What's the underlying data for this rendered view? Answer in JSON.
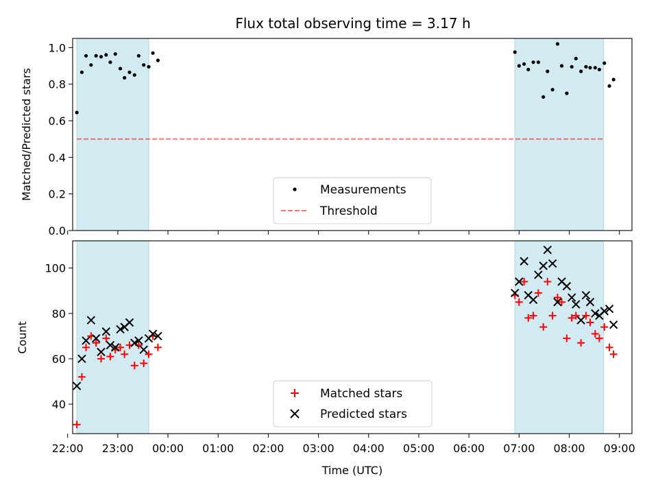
{
  "title": "Flux total observing time = 3.17 h",
  "colors": {
    "band": "#add8e6",
    "measurement": "#000000",
    "threshold": "#ff0000",
    "matched": "#ff0000",
    "predicted": "#000000"
  },
  "chart_data": [
    {
      "type": "scatter",
      "name": "ratio-panel",
      "ylabel": "Matched/Predicted stars",
      "xlabel": "",
      "ylim": [
        0,
        1.05
      ],
      "xlim": [
        "22:06",
        "09:15"
      ],
      "yticks": [
        {
          "value": 0.0,
          "label": "0.0"
        },
        {
          "value": 0.2,
          "label": "0.2"
        },
        {
          "value": 0.4,
          "label": "0.4"
        },
        {
          "value": 0.6,
          "label": "0.6"
        },
        {
          "value": 0.8,
          "label": "0.8"
        },
        {
          "value": 1.0,
          "label": "1.0"
        }
      ],
      "observing_windows": [
        {
          "start": "22:11",
          "end": "23:37"
        },
        {
          "start": "06:55",
          "end": "08:41"
        }
      ],
      "legend": {
        "placement": "lower center",
        "entries": [
          {
            "label": "Measurements",
            "marker": "dot"
          },
          {
            "label": "Threshold",
            "marker": "dashed-line"
          }
        ]
      },
      "series": [
        {
          "name": "Measurements",
          "marker": "dot",
          "points": [
            [
              "22:11",
              0.645
            ],
            [
              "22:17",
              0.865
            ],
            [
              "22:22",
              0.955
            ],
            [
              "22:28",
              0.905
            ],
            [
              "22:34",
              0.955
            ],
            [
              "22:40",
              0.95
            ],
            [
              "22:46",
              0.96
            ],
            [
              "22:51",
              0.92
            ],
            [
              "22:57",
              0.965
            ],
            [
              "23:03",
              0.885
            ],
            [
              "23:08",
              0.835
            ],
            [
              "23:14",
              0.865
            ],
            [
              "23:20",
              0.85
            ],
            [
              "23:25",
              0.955
            ],
            [
              "23:31",
              0.905
            ],
            [
              "23:37",
              0.895
            ],
            [
              "23:42",
              0.97
            ],
            [
              "23:48",
              0.93
            ],
            [
              "06:55",
              0.975
            ],
            [
              "07:00",
              0.9
            ],
            [
              "07:06",
              0.91
            ],
            [
              "07:11",
              0.88
            ],
            [
              "07:17",
              0.92
            ],
            [
              "07:23",
              0.92
            ],
            [
              "07:29",
              0.73
            ],
            [
              "07:34",
              0.87
            ],
            [
              "07:40",
              0.77
            ],
            [
              "07:46",
              1.02
            ],
            [
              "07:51",
              0.9
            ],
            [
              "07:57",
              0.75
            ],
            [
              "08:03",
              0.895
            ],
            [
              "08:08",
              0.94
            ],
            [
              "08:14",
              0.87
            ],
            [
              "08:20",
              0.895
            ],
            [
              "08:25",
              0.89
            ],
            [
              "08:31",
              0.89
            ],
            [
              "08:36",
              0.88
            ],
            [
              "08:42",
              0.915
            ],
            [
              "08:48",
              0.79
            ],
            [
              "08:53",
              0.825
            ]
          ]
        },
        {
          "name": "Threshold",
          "marker": "dashed-line",
          "points": [
            [
              "22:11",
              0.5
            ],
            [
              "08:41",
              0.5
            ]
          ]
        }
      ]
    },
    {
      "type": "scatter",
      "name": "count-panel",
      "ylabel": "Count",
      "xlabel": "Time (UTC)",
      "ylim": [
        27,
        112
      ],
      "xlim": [
        "22:06",
        "09:15"
      ],
      "yticks": [
        {
          "value": 40,
          "label": "40"
        },
        {
          "value": 60,
          "label": "60"
        },
        {
          "value": 80,
          "label": "80"
        },
        {
          "value": 100,
          "label": "100"
        }
      ],
      "xticks": [
        {
          "value": "22:00",
          "label": "22:00"
        },
        {
          "value": "23:00",
          "label": "23:00"
        },
        {
          "value": "00:00",
          "label": "00:00"
        },
        {
          "value": "01:00",
          "label": "01:00"
        },
        {
          "value": "02:00",
          "label": "02:00"
        },
        {
          "value": "03:00",
          "label": "03:00"
        },
        {
          "value": "04:00",
          "label": "04:00"
        },
        {
          "value": "05:00",
          "label": "05:00"
        },
        {
          "value": "06:00",
          "label": "06:00"
        },
        {
          "value": "07:00",
          "label": "07:00"
        },
        {
          "value": "08:00",
          "label": "08:00"
        },
        {
          "value": "09:00",
          "label": "09:00"
        }
      ],
      "observing_windows": [
        {
          "start": "22:11",
          "end": "23:37"
        },
        {
          "start": "06:55",
          "end": "08:41"
        }
      ],
      "legend": {
        "placement": "lower center",
        "entries": [
          {
            "label": "Matched stars",
            "marker": "plus"
          },
          {
            "label": "Predicted stars",
            "marker": "x"
          }
        ]
      },
      "series": [
        {
          "name": "Matched stars",
          "marker": "plus",
          "points": [
            [
              "22:11",
              31
            ],
            [
              "22:17",
              52
            ],
            [
              "22:22",
              65
            ],
            [
              "22:28",
              70
            ],
            [
              "22:34",
              67
            ],
            [
              "22:40",
              60
            ],
            [
              "22:46",
              69
            ],
            [
              "22:51",
              61
            ],
            [
              "22:57",
              64
            ],
            [
              "23:03",
              65
            ],
            [
              "23:08",
              62
            ],
            [
              "23:14",
              66
            ],
            [
              "23:20",
              57
            ],
            [
              "23:25",
              66
            ],
            [
              "23:31",
              58
            ],
            [
              "23:37",
              62
            ],
            [
              "23:42",
              70
            ],
            [
              "23:48",
              65
            ],
            [
              "06:55",
              88
            ],
            [
              "07:00",
              85
            ],
            [
              "07:06",
              94
            ],
            [
              "07:11",
              78
            ],
            [
              "07:17",
              79
            ],
            [
              "07:23",
              89
            ],
            [
              "07:29",
              74
            ],
            [
              "07:34",
              94
            ],
            [
              "07:40",
              79
            ],
            [
              "07:46",
              87
            ],
            [
              "07:51",
              85
            ],
            [
              "07:57",
              69
            ],
            [
              "08:03",
              78
            ],
            [
              "08:08",
              79
            ],
            [
              "08:14",
              67
            ],
            [
              "08:20",
              79
            ],
            [
              "08:25",
              76
            ],
            [
              "08:31",
              71
            ],
            [
              "08:36",
              69
            ],
            [
              "08:42",
              74
            ],
            [
              "08:48",
              65
            ],
            [
              "08:53",
              62
            ]
          ]
        },
        {
          "name": "Predicted stars",
          "marker": "x",
          "points": [
            [
              "22:11",
              48
            ],
            [
              "22:17",
              60
            ],
            [
              "22:22",
              68
            ],
            [
              "22:28",
              77
            ],
            [
              "22:34",
              69
            ],
            [
              "22:40",
              63
            ],
            [
              "22:46",
              72
            ],
            [
              "22:51",
              66
            ],
            [
              "22:57",
              65
            ],
            [
              "23:03",
              73
            ],
            [
              "23:08",
              74
            ],
            [
              "23:14",
              76
            ],
            [
              "23:20",
              67
            ],
            [
              "23:25",
              68
            ],
            [
              "23:31",
              64
            ],
            [
              "23:37",
              69
            ],
            [
              "23:42",
              71
            ],
            [
              "23:48",
              70
            ],
            [
              "06:55",
              89
            ],
            [
              "07:00",
              94
            ],
            [
              "07:06",
              103
            ],
            [
              "07:11",
              88
            ],
            [
              "07:17",
              86
            ],
            [
              "07:23",
              97
            ],
            [
              "07:29",
              101
            ],
            [
              "07:34",
              108
            ],
            [
              "07:40",
              102
            ],
            [
              "07:46",
              85
            ],
            [
              "07:51",
              94
            ],
            [
              "07:57",
              92
            ],
            [
              "08:03",
              87
            ],
            [
              "08:08",
              84
            ],
            [
              "08:14",
              77
            ],
            [
              "08:20",
              88
            ],
            [
              "08:25",
              85
            ],
            [
              "08:31",
              80
            ],
            [
              "08:36",
              79
            ],
            [
              "08:42",
              81
            ],
            [
              "08:48",
              82
            ],
            [
              "08:53",
              75
            ]
          ]
        }
      ]
    }
  ]
}
